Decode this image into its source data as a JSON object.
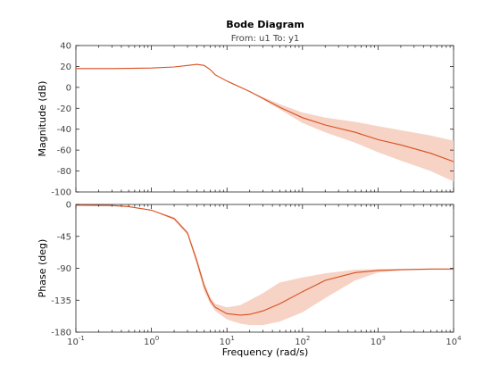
{
  "chart_data": {
    "type": "line",
    "title": "Bode Diagram",
    "subtitle": "From: u1  To: y1",
    "xlabel": "Frequency  (rad/s)",
    "xscale": "log",
    "xlim": [
      0.1,
      10000
    ],
    "x_ticks": [
      {
        "value": 0.1,
        "base": "10",
        "exp": "-1"
      },
      {
        "value": 1,
        "base": "10",
        "exp": "0"
      },
      {
        "value": 10,
        "base": "10",
        "exp": "1"
      },
      {
        "value": 100,
        "base": "10",
        "exp": "2"
      },
      {
        "value": 1000,
        "base": "10",
        "exp": "3"
      },
      {
        "value": 10000,
        "base": "10",
        "exp": "4"
      }
    ],
    "panels": [
      {
        "ylabel": "Magnitude (dB)",
        "ylim": [
          -100,
          40
        ],
        "yticks": [
          40,
          20,
          0,
          -20,
          -40,
          -60,
          -80,
          -100
        ],
        "series": [
          {
            "x": [
              0.1,
              0.3,
              1,
              2,
              3,
              4,
              5,
              6,
              7,
              10,
              20,
              50,
              100,
              200,
              500,
              1000,
              2000,
              5000,
              10000
            ],
            "y": [
              18,
              18,
              18.5,
              19.5,
              21,
              22,
              21,
              17,
              12,
              6,
              -4,
              -19,
              -29,
              -36,
              -43,
              -50,
              -55,
              -63,
              -71
            ],
            "upper": [
              18,
              18,
              18.5,
              19.5,
              21,
              22,
              21,
              17,
              12,
              6,
              -4,
              -16,
              -24,
              -29,
              -33,
              -37,
              -41,
              -46,
              -51
            ],
            "lower": [
              18,
              18,
              18.5,
              19.5,
              21,
              22,
              21,
              17,
              12,
              6,
              -4,
              -21,
              -34,
              -43,
              -53,
              -62,
              -70,
              -80,
              -90
            ]
          }
        ]
      },
      {
        "ylabel": "Phase (deg)",
        "ylim": [
          -180,
          0
        ],
        "yticks": [
          0,
          -45,
          -90,
          -135,
          -180
        ],
        "series": [
          {
            "x": [
              0.1,
              0.3,
              0.5,
              1,
              2,
              3,
              4,
              5,
              6,
              7,
              10,
              15,
              20,
              30,
              50,
              100,
              200,
              500,
              1000,
              2000,
              5000,
              10000
            ],
            "y": [
              -1,
              -1.5,
              -3,
              -8,
              -20,
              -40,
              -80,
              -115,
              -135,
              -145,
              -154,
              -156,
              -155,
              -150,
              -140,
              -123,
              -107,
              -96,
              -93,
              -92,
              -91,
              -91
            ],
            "upper": [
              -1,
              -1.5,
              -3,
              -8,
              -18,
              -38,
              -75,
              -110,
              -130,
              -140,
              -145,
              -142,
              -135,
              -125,
              -110,
              -103,
              -97,
              -92,
              -91,
              -91,
              -91,
              -91
            ],
            "lower": [
              -1,
              -1.5,
              -3,
              -8,
              -22,
              -43,
              -85,
              -122,
              -140,
              -150,
              -162,
              -168,
              -170,
              -170,
              -165,
              -152,
              -132,
              -107,
              -96,
              -93,
              -92,
              -92
            ]
          }
        ]
      }
    ]
  },
  "colors": {
    "line": "#d94e1f",
    "band": "#f6d3c5",
    "axes": "#262626"
  }
}
